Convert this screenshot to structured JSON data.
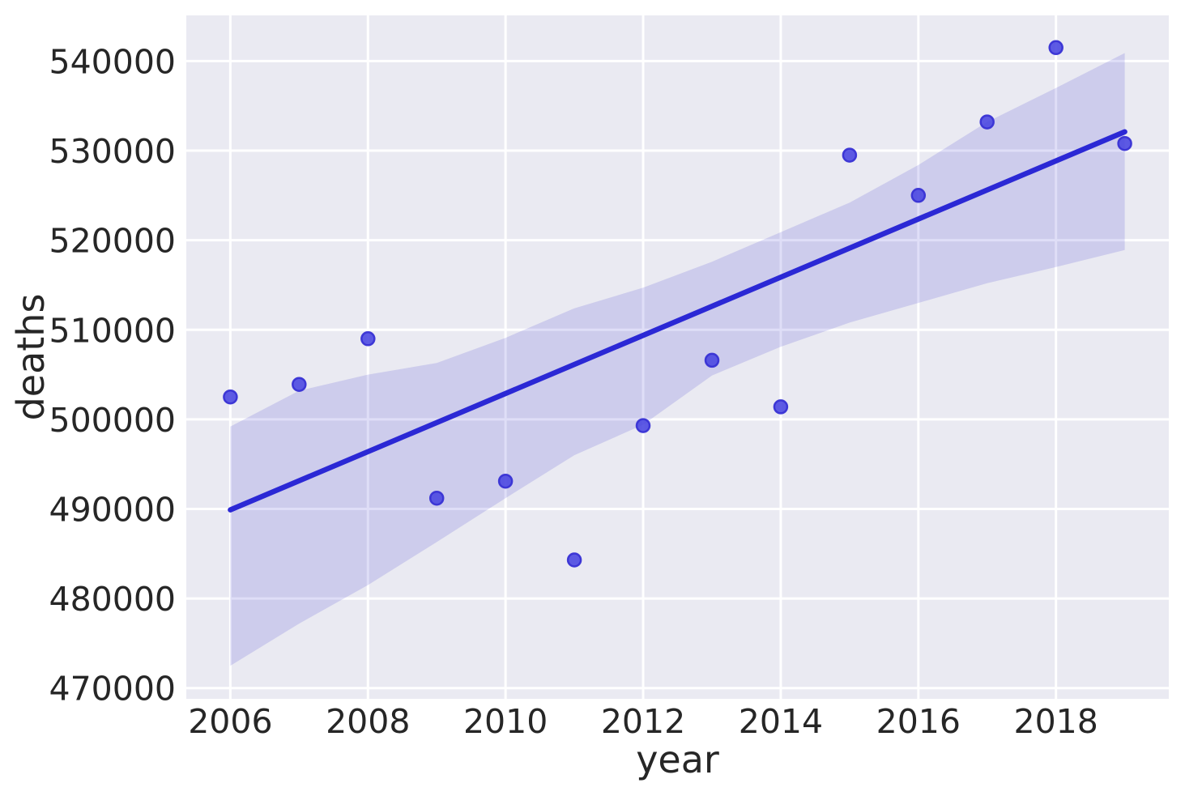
{
  "chart_data": {
    "type": "scatter",
    "title": "",
    "xlabel": "year",
    "ylabel": "deaths",
    "xlim": [
      2005.36,
      2019.64
    ],
    "ylim": [
      468800,
      545100
    ],
    "x_ticks": [
      2006,
      2008,
      2010,
      2012,
      2014,
      2016,
      2018
    ],
    "y_ticks": [
      470000,
      480000,
      490000,
      500000,
      510000,
      520000,
      530000,
      540000
    ],
    "grid": true,
    "legend": null,
    "points": {
      "x": [
        2006,
        2007,
        2008,
        2009,
        2010,
        2011,
        2012,
        2013,
        2014,
        2015,
        2016,
        2017,
        2018,
        2019
      ],
      "y": [
        502500,
        503900,
        509000,
        491200,
        493100,
        484300,
        499300,
        506600,
        501400,
        529500,
        525000,
        533200,
        541500,
        530800
      ]
    },
    "regression_line": {
      "x": [
        2006,
        2019
      ],
      "y": [
        489900,
        532100
      ]
    },
    "ci_band": {
      "x": [
        2006,
        2007,
        2008,
        2009,
        2010,
        2011,
        2012,
        2013,
        2014,
        2015,
        2016,
        2017,
        2018,
        2019
      ],
      "lower": [
        472500,
        477200,
        481500,
        486300,
        491200,
        496000,
        499400,
        504900,
        508100,
        510800,
        513000,
        515200,
        517000,
        518900
      ],
      "upper": [
        499200,
        503200,
        505000,
        506300,
        509100,
        512400,
        514700,
        517600,
        520900,
        524200,
        528400,
        533200,
        537000,
        540900
      ]
    },
    "colors": {
      "plot_bg": "#eaeaf2",
      "grid": "#ffffff",
      "band": "rgba(41,34,202,0.15)",
      "line": "#2b28d5",
      "point_fill": "rgba(72,68,224,0.88)",
      "point_edge": "rgba(56,50,212,0.95)",
      "text": "#262626"
    }
  }
}
